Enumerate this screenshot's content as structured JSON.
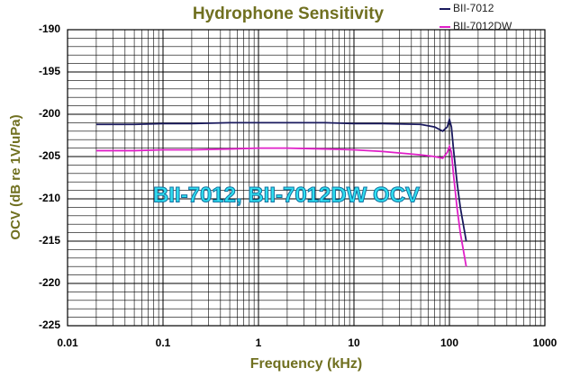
{
  "chart_data": {
    "type": "line",
    "title": "Hydrophone Sensitivity",
    "xlabel": "Frequency (kHz)",
    "ylabel": "OCV (dB re 1V/uPa)",
    "annotation": "BII-7012, BII-7012DW  OCV",
    "xscale": "log",
    "grid": true,
    "legend": "upper right",
    "xlim": [
      0.01,
      1000
    ],
    "xticks": [
      0.01,
      0.1,
      1,
      10,
      100,
      1000
    ],
    "ylim": [
      -225,
      -190
    ],
    "yticks": [
      -190,
      -195,
      -200,
      -205,
      -210,
      -215,
      -220,
      -225
    ],
    "x": [
      0.02,
      0.05,
      0.1,
      0.2,
      0.5,
      1,
      2,
      5,
      10,
      20,
      50,
      70,
      85,
      95,
      100,
      105,
      110,
      120,
      130,
      150
    ],
    "series": [
      {
        "name": "BII-7012",
        "color": "#1a1a5e",
        "values": [
          -201.2,
          -201.2,
          -201.1,
          -201.1,
          -201.0,
          -201.0,
          -201.0,
          -201.0,
          -201.1,
          -201.1,
          -201.2,
          -201.5,
          -202.0,
          -201.5,
          -200.6,
          -201.5,
          -204,
          -208,
          -211,
          -215
        ]
      },
      {
        "name": "BII-7012DW",
        "color": "#e020c8",
        "values": [
          -204.3,
          -204.3,
          -204.2,
          -204.2,
          -204.1,
          -204.0,
          -204.0,
          -204.1,
          -204.2,
          -204.4,
          -204.8,
          -205.0,
          -205.2,
          -204.5,
          -203.8,
          -204.5,
          -207,
          -211,
          -214,
          -218
        ]
      }
    ]
  }
}
